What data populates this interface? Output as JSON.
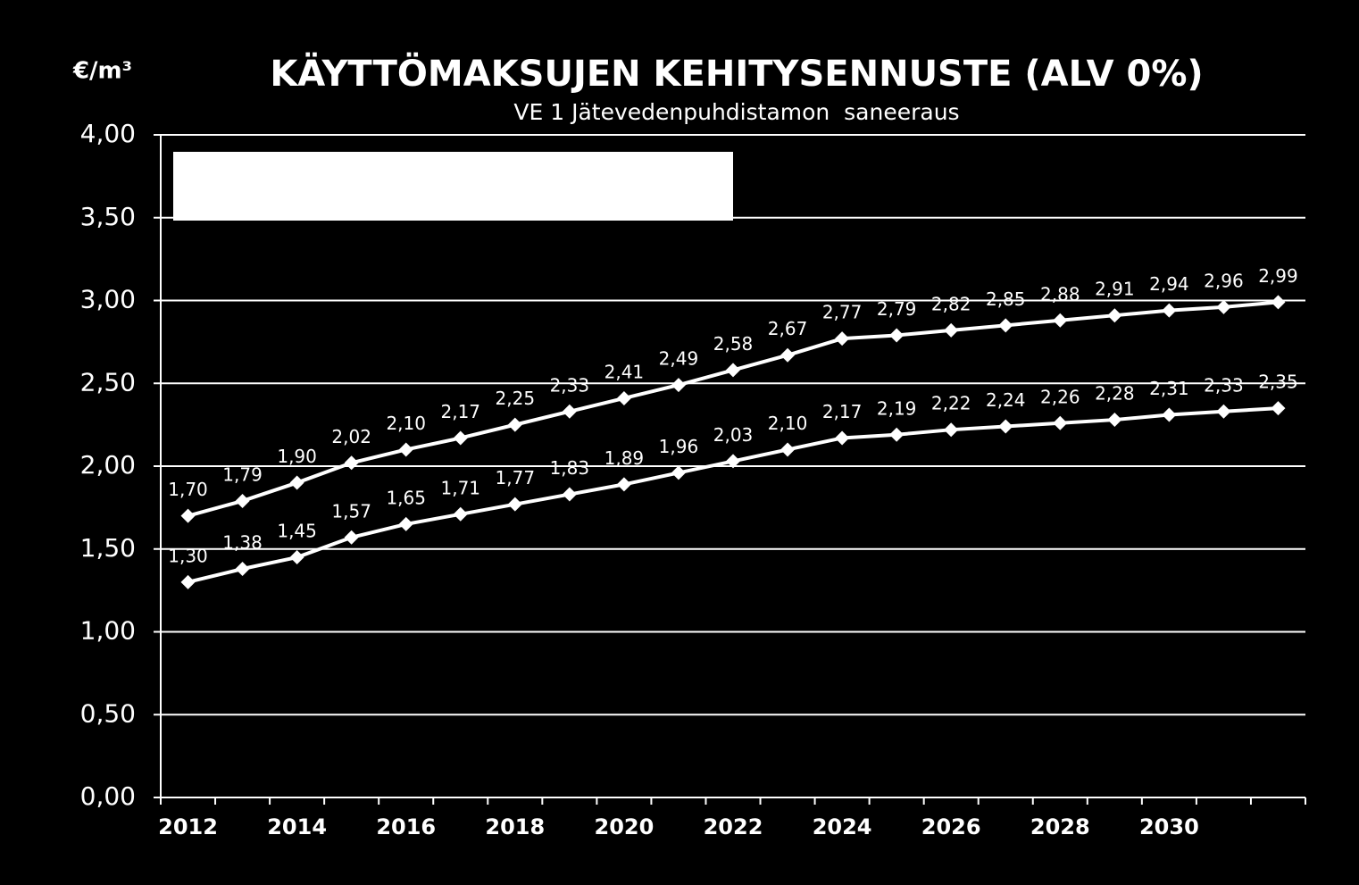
{
  "chart_data": {
    "type": "line",
    "title": "KÄYTTÖMAKSUJEN KEHITYSENNUSTE (ALV 0%)",
    "subtitle": "VE 1 Jätevedenpuhdistamon  saneeraus",
    "y_label": "€/m³",
    "categories": [
      "2012",
      null,
      "2014",
      null,
      "2016",
      null,
      "2018",
      null,
      "2020",
      null,
      "2022",
      null,
      "2024",
      null,
      "2026",
      null,
      "2028",
      null,
      "2030",
      null,
      null
    ],
    "series": [
      {
        "color": "#ffffff",
        "values": [
          1.7,
          1.79,
          1.9,
          2.02,
          2.1,
          2.17,
          2.25,
          2.33,
          2.41,
          2.49,
          2.58,
          2.67,
          2.77,
          2.79,
          2.82,
          2.85,
          2.88,
          2.91,
          2.94,
          2.96,
          2.99
        ],
        "value_labels": [
          "1,70",
          "1,79",
          "1,90",
          "2,02",
          "2,10",
          "2,17",
          "2,25",
          "2,33",
          "2,41",
          "2,49",
          "2,58",
          "2,67",
          "2,77",
          "2,79",
          "2,82",
          "2,85",
          "2,88",
          "2,91",
          "2,94",
          "2,96",
          "2,99"
        ]
      },
      {
        "color": "#ffffff",
        "values": [
          1.3,
          1.38,
          1.45,
          1.57,
          1.65,
          1.71,
          1.77,
          1.83,
          1.89,
          1.96,
          2.03,
          2.1,
          2.17,
          2.19,
          2.22,
          2.24,
          2.26,
          2.28,
          2.31,
          2.33,
          2.35
        ],
        "value_labels": [
          "1,30",
          "1,38",
          "1,45",
          "1,57",
          "1,65",
          "1,71",
          "1,77",
          "1,83",
          "1,89",
          "1,96",
          "2,03",
          "2,10",
          "2,17",
          "2,19",
          "2,22",
          "2,24",
          "2,26",
          "2,28",
          "2,31",
          "2,33",
          "2,35"
        ]
      }
    ],
    "ylim": [
      0,
      4
    ],
    "yticks": [
      {
        "value": 0,
        "label": "0,00"
      },
      {
        "value": 0.5,
        "label": "0,50"
      },
      {
        "value": 1,
        "label": "1,00"
      },
      {
        "value": 1.5,
        "label": "1,50"
      },
      {
        "value": 2,
        "label": "2,00"
      },
      {
        "value": 2.5,
        "label": "2,50"
      },
      {
        "value": 3,
        "label": "3,00"
      },
      {
        "value": 3.5,
        "label": "3,50"
      },
      {
        "value": 4,
        "label": "4,00"
      }
    ],
    "grid": true
  }
}
